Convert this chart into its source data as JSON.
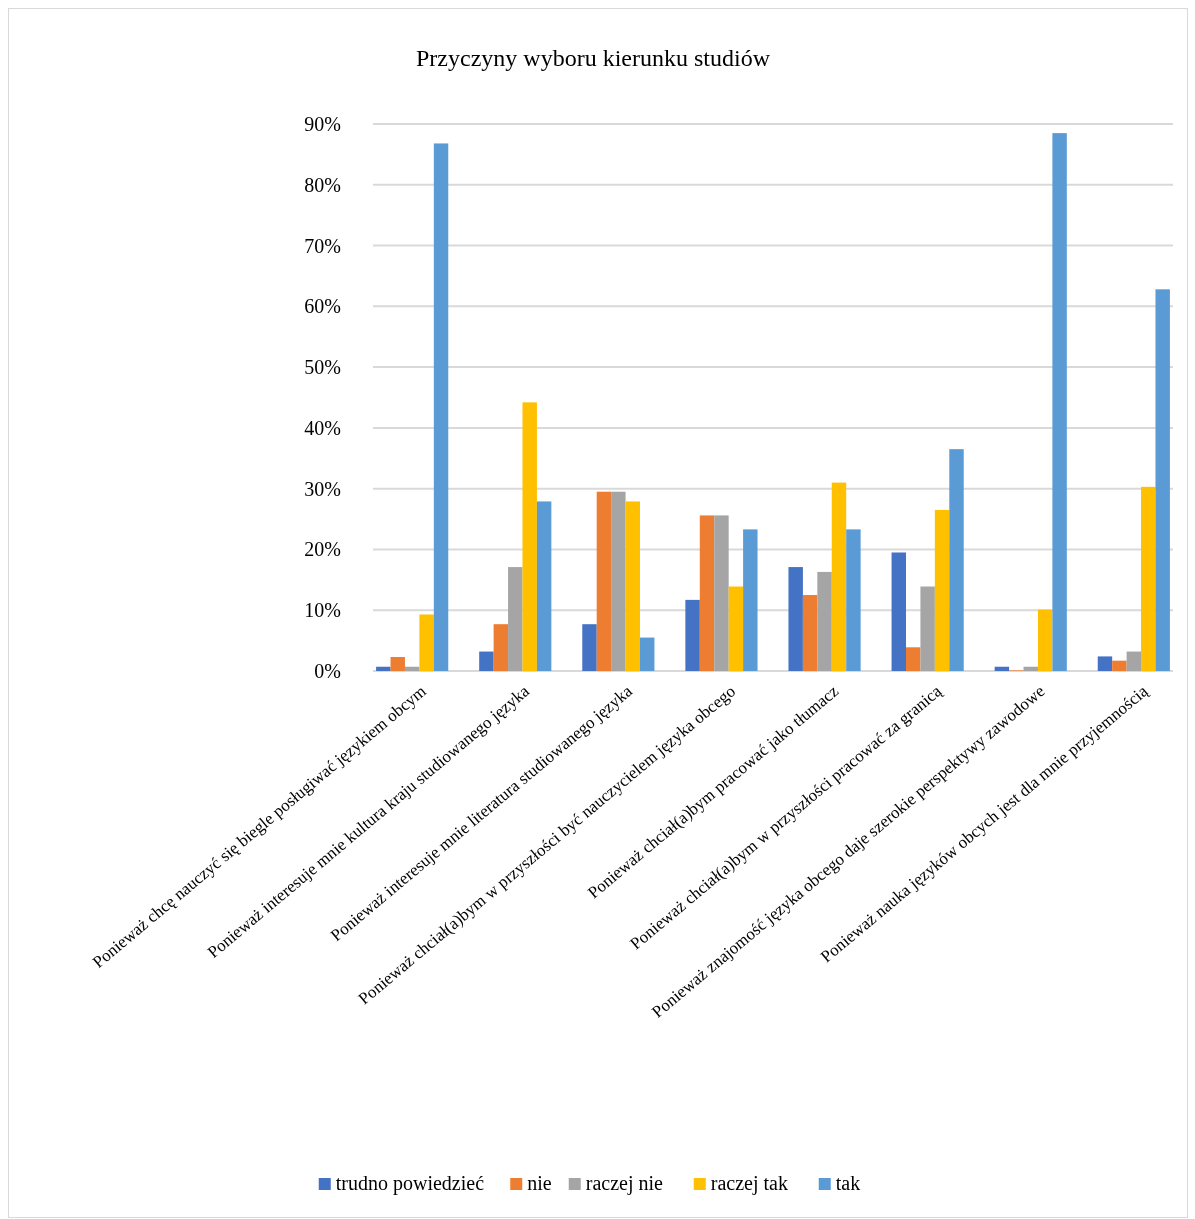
{
  "chart_data": {
    "type": "bar",
    "title": "Przyczyny wyboru kierunku studiów",
    "categories": [
      "Ponieważ chcę nauczyć się biegle posługiwać językiem obcym",
      "Ponieważ interesuje mnie kultura kraju studiowanego języka",
      "Ponieważ interesuje mnie literatura studiowanego języka",
      "Ponieważ chciał(a)bym w przyszłości być nauczycielem języka obcego",
      "Ponieważ chciał(a)bym pracować jako tłumacz",
      "Ponieważ chciał(a)bym w przyszłości pracować za granicą",
      "Ponieważ znajomość języka obcego daje szerokie perspektywy zawodowe",
      "Ponieważ nauka języków obcych jest dla mnie przyjemnością"
    ],
    "series": [
      {
        "name": "trudno powiedzieć",
        "color": "#4472c4",
        "values": [
          0.7,
          3.2,
          7.7,
          11.7,
          17.1,
          19.5,
          0.7,
          2.4
        ]
      },
      {
        "name": "nie",
        "color": "#ed7d31",
        "values": [
          2.3,
          7.7,
          29.5,
          25.6,
          12.5,
          3.9,
          0.1,
          1.7
        ]
      },
      {
        "name": "raczej nie",
        "color": "#a5a5a5",
        "values": [
          0.7,
          17.1,
          29.5,
          25.6,
          16.3,
          13.9,
          0.7,
          3.2
        ]
      },
      {
        "name": "raczej tak",
        "color": "#ffc000",
        "values": [
          9.3,
          44.2,
          27.9,
          13.9,
          31.0,
          26.5,
          10.1,
          30.3
        ]
      },
      {
        "name": "tak",
        "color": "#5b9bd5",
        "values": [
          86.8,
          27.9,
          5.5,
          23.3,
          23.3,
          36.5,
          88.5,
          62.8
        ]
      }
    ],
    "ylim": [
      0,
      90
    ],
    "yticks": [
      {
        "value": 0,
        "label": "0%"
      },
      {
        "value": 10,
        "label": "10%"
      },
      {
        "value": 20,
        "label": "20%"
      },
      {
        "value": 30,
        "label": "30%"
      },
      {
        "value": 40,
        "label": "40%"
      },
      {
        "value": 50,
        "label": "50%"
      },
      {
        "value": 60,
        "label": "60%"
      },
      {
        "value": 70,
        "label": "70%"
      },
      {
        "value": 80,
        "label": "80%"
      },
      {
        "value": 90,
        "label": "90%"
      }
    ],
    "grid": "y",
    "legend": "bottom"
  }
}
